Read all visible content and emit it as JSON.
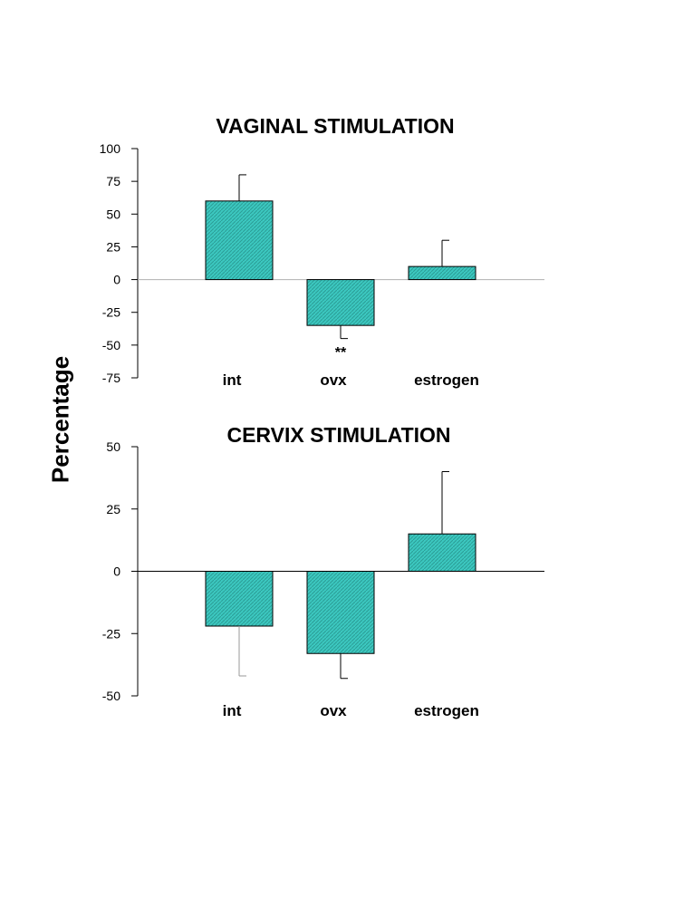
{
  "ylabel": "Percentage",
  "colors": {
    "bar_fill": "#3cc8c0",
    "bar_stroke": "#000000",
    "axis": "#000000",
    "zero_line_top": "#b0b0b0",
    "zero_line_bottom": "#000000"
  },
  "chart_data": [
    {
      "type": "bar",
      "title": "VAGINAL STIMULATION",
      "categories": [
        "int",
        "ovx",
        "estrogen"
      ],
      "values": [
        60,
        -35,
        10
      ],
      "error_bars": [
        20,
        10,
        20
      ],
      "ylim": [
        -75,
        100
      ],
      "yticks": [
        100,
        75,
        50,
        25,
        0,
        -25,
        -50,
        -75
      ],
      "ytick_labels": [
        "100",
        "75",
        "50",
        "25",
        "0",
        "-25",
        "-50",
        "-75"
      ],
      "annotations": [
        {
          "category": "ovx",
          "text": "**"
        }
      ],
      "grid": false
    },
    {
      "type": "bar",
      "title": "CERVIX STIMULATION",
      "categories": [
        "int",
        "ovx",
        "estrogen"
      ],
      "values": [
        -22,
        -33,
        15
      ],
      "error_bars": [
        20,
        10,
        25
      ],
      "ylim": [
        -50,
        50
      ],
      "yticks": [
        50,
        25,
        0,
        -25,
        -50
      ],
      "ytick_labels": [
        "50",
        "25",
        "0",
        "-25",
        "-50"
      ],
      "annotations": [],
      "grid": false
    }
  ]
}
